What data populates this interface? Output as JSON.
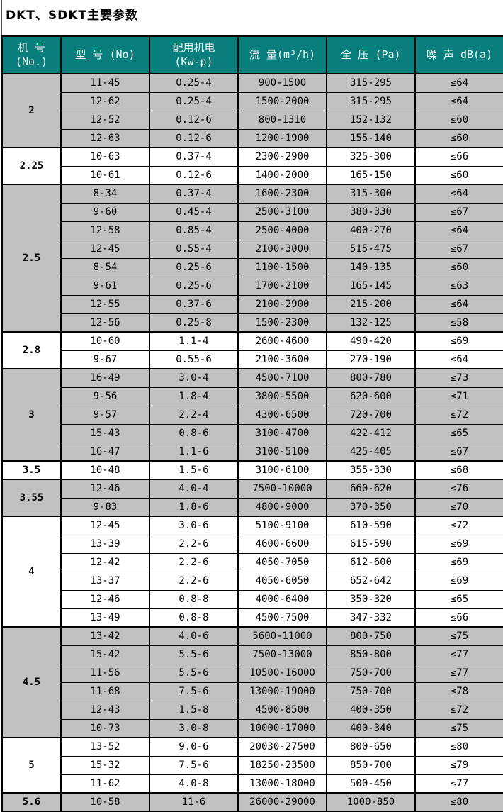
{
  "title": "DKT、SDKT主要参数",
  "colors": {
    "header_bg": "#0a7e7d",
    "header_text": "#eefaf8",
    "row_gray": "#c1c1c1",
    "row_white": "#ffffff",
    "border": "#000000",
    "title_text": "#000000"
  },
  "table": {
    "columns": [
      {
        "name": "machine-no",
        "lines": [
          "机 号",
          "(No.)"
        ]
      },
      {
        "name": "model",
        "lines": [
          "型 号 (No)"
        ]
      },
      {
        "name": "motor-power",
        "lines": [
          "配用机电",
          "(Kw-p)"
        ]
      },
      {
        "name": "flow-rate",
        "lines": [
          "流 量(m³/h)"
        ]
      },
      {
        "name": "total-pressure",
        "lines": [
          "全  压 (Pa)"
        ]
      },
      {
        "name": "noise",
        "lines": [
          "噪 声 dB(a)"
        ]
      }
    ],
    "row_fields": [
      "model",
      "motor_power",
      "flow_rate",
      "total_pressure",
      "noise"
    ],
    "groups": [
      {
        "machine_no": "2",
        "shade": "gray",
        "rows": [
          [
            "11-45",
            "0.25-4",
            "900-1500",
            "315-295",
            "≤64"
          ],
          [
            "12-62",
            "0.25-4",
            "1500-2000",
            "315-295",
            "≤64"
          ],
          [
            "12-52",
            "0.12-6",
            "800-1310",
            "152-132",
            "≤60"
          ],
          [
            "12-63",
            "0.12-6",
            "1200-1900",
            "155-140",
            "≤60"
          ]
        ]
      },
      {
        "machine_no": "2.25",
        "shade": "white",
        "rows": [
          [
            "10-63",
            "0.37-4",
            "2300-2900",
            "325-300",
            "≤66"
          ],
          [
            "10-61",
            "0.12-6",
            "1400-2000",
            "165-150",
            "≤60"
          ]
        ]
      },
      {
        "machine_no": "2.5",
        "shade": "gray",
        "rows": [
          [
            "8-34",
            "0.37-4",
            "1600-2300",
            "315-300",
            "≤64"
          ],
          [
            "9-60",
            "0.45-4",
            "2500-3100",
            "380-330",
            "≤67"
          ],
          [
            "12-58",
            "0.85-4",
            "2500-4000",
            "400-270",
            "≤64"
          ],
          [
            "12-45",
            "0.55-4",
            "2100-3000",
            "515-475",
            "≤67"
          ],
          [
            "8-54",
            "0.25-6",
            "1100-1500",
            "140-135",
            "≤60"
          ],
          [
            "9-61",
            "0.25-6",
            "1700-2100",
            "165-145",
            "≤63"
          ],
          [
            "12-55",
            "0.37-6",
            "2100-2900",
            "215-200",
            "≤64"
          ],
          [
            "12-56",
            "0.25-8",
            "1500-2300",
            "132-125",
            "≤58"
          ]
        ]
      },
      {
        "machine_no": "2.8",
        "shade": "white",
        "rows": [
          [
            "10-60",
            "1.1-4",
            "2600-4600",
            "490-420",
            "≤69"
          ],
          [
            "9-67",
            "0.55-6",
            "2100-3600",
            "270-190",
            "≤64"
          ]
        ]
      },
      {
        "machine_no": "3",
        "shade": "gray",
        "rows": [
          [
            "16-49",
            "3.0-4",
            "4500-7100",
            "800-780",
            "≤73"
          ],
          [
            "9-56",
            "1.8-4",
            "3800-5500",
            "620-600",
            "≤71"
          ],
          [
            "9-57",
            "2.2-4",
            "4300-6500",
            "720-700",
            "≤72"
          ],
          [
            "15-43",
            "0.8-6",
            "3100-4700",
            "422-412",
            "≤65"
          ],
          [
            "16-47",
            "1.1-6",
            "3100-5100",
            "425-405",
            "≤67"
          ]
        ]
      },
      {
        "machine_no": "3.5",
        "shade": "white",
        "rows": [
          [
            "10-48",
            "1.5-6",
            "3100-6100",
            "355-330",
            "≤68"
          ]
        ]
      },
      {
        "machine_no": "3.55",
        "shade": "gray",
        "rows": [
          [
            "12-46",
            "4.0-4",
            "7500-10000",
            "660-620",
            "≤76"
          ],
          [
            "9-83",
            "1.8-6",
            "4800-9000",
            "370-350",
            "≤70"
          ]
        ]
      },
      {
        "machine_no": "4",
        "shade": "white",
        "rows": [
          [
            "12-45",
            "3.0-6",
            "5100-9100",
            "610-590",
            "≤72"
          ],
          [
            "13-39",
            "2.2-6",
            "4600-6600",
            "615-590",
            "≤69"
          ],
          [
            "12-42",
            "2.2-6",
            "4050-7050",
            "612-600",
            "≤69"
          ],
          [
            "13-37",
            "2.2-6",
            "4050-6050",
            "652-642",
            "≤69"
          ],
          [
            "12-46",
            "0.8-8",
            "4000-6400",
            "350-320",
            "≤65"
          ],
          [
            "13-49",
            "0.8-8",
            "4500-7500",
            "347-332",
            "≤66"
          ]
        ]
      },
      {
        "machine_no": "4.5",
        "shade": "gray",
        "rows": [
          [
            "13-42",
            "4.0-6",
            "5600-11000",
            "800-750",
            "≤75"
          ],
          [
            "15-42",
            "5.5-6",
            "7500-13000",
            "850-800",
            "≤77"
          ],
          [
            "11-56",
            "5.5-6",
            "10500-16000",
            "750-700",
            "≤77"
          ],
          [
            "11-68",
            "7.5-6",
            "13000-19000",
            "750-700",
            "≤78"
          ],
          [
            "12-43",
            "1.5-8",
            "4500-8500",
            "400-350",
            "≤72"
          ],
          [
            "10-73",
            "3.0-8",
            "10000-17000",
            "400-340",
            "≤75"
          ]
        ]
      },
      {
        "machine_no": "5",
        "shade": "white",
        "rows": [
          [
            "13-52",
            "9.0-6",
            "20030-27500",
            "800-650",
            "≤80"
          ],
          [
            "15-32",
            "7.5-6",
            "18250-23500",
            "850-700",
            "≤79"
          ],
          [
            "11-62",
            "4.0-8",
            "13000-18000",
            "500-450",
            "≤77"
          ]
        ]
      },
      {
        "machine_no": "5.6",
        "shade": "gray",
        "rows": [
          [
            "10-58",
            "11-6",
            "26000-29000",
            "1000-850",
            "≤80"
          ]
        ]
      }
    ]
  }
}
